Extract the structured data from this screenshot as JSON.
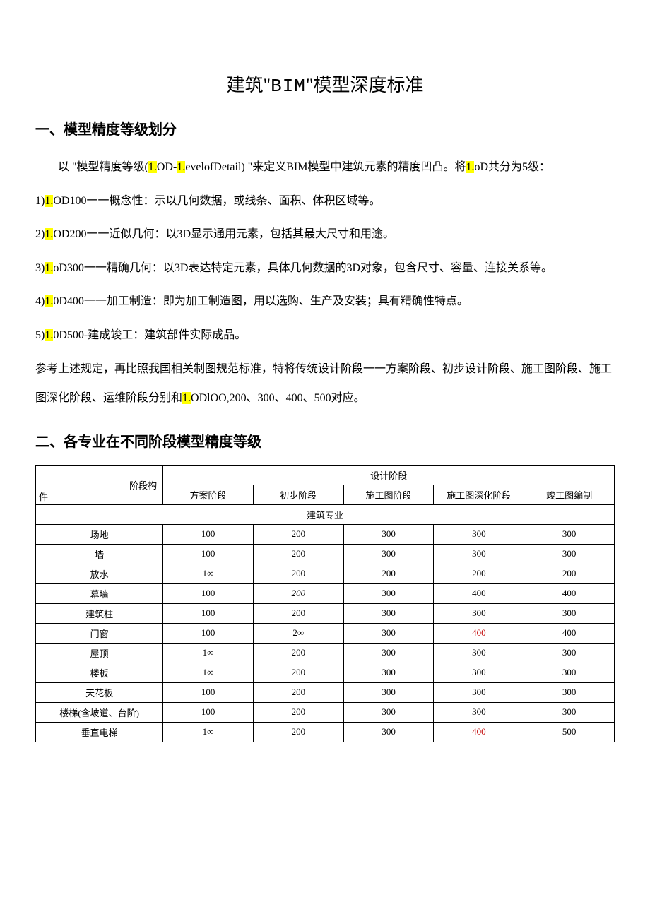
{
  "title_pre": "建筑\"",
  "title_mono": "BIM",
  "title_post": "\"模型深度标准",
  "heading1": "一、模型精度等级划分",
  "p1_pre": "以 \"模型精度等级(",
  "p1_hl1": "1.",
  "p1_mid1": "OD-",
  "p1_hl2": "1.",
  "p1_mid2": "evelofDetail) \"来定义BIM模型中建筑元素的精度凹凸。将",
  "p1_hl3": "1.",
  "p1_post": "oD共分为5级：",
  "p2_pre": "1)",
  "p2_hl": "1.",
  "p2_post": "OD100一一概念性：示以几何数据，或线条、面积、体积区域等。",
  "p3_pre": "2)",
  "p3_hl": "1.",
  "p3_post": "OD200一一近似几何：以3D显示通用元素，包括其最大尺寸和用途。",
  "p4_pre": "3)",
  "p4_hl": "1.",
  "p4_post": "oD300一一精确几何：以3D表达特定元素，具体几何数据的3D对象，包含尺寸、容量、连接关系等。",
  "p5_pre": "4)",
  "p5_hl": "1.",
  "p5_post": "0D400一一加工制造：即为加工制造图，用以选购、生产及安装；具有精确性特点。",
  "p6_pre": "5)",
  "p6_hl": "1.",
  "p6_post": "0D500-建成竣工：建筑部件实际成品。",
  "p7_pre": "参考上述规定，再比照我国相关制图规范标准，特将传统设计阶段一一方案阶段、初步设计阶段、施工图阶段、施工图深化阶段、运维阶段分别和",
  "p7_hl": "1.",
  "p7_post": "ODlOO,200、300、400、500对应。",
  "heading2": "二、各专业在不同阶段模型精度等级",
  "table": {
    "corner_top": "阶段构",
    "corner_bottom": "件",
    "design_phase_header": "设计阶段",
    "columns": [
      "方案阶段",
      "初步阶段",
      "施工图阶段",
      "施工图深化阶段",
      "竣工图编制"
    ],
    "section_label": "建筑专业",
    "rows": [
      {
        "label": "场地",
        "cells": [
          {
            "v": "100"
          },
          {
            "v": "200"
          },
          {
            "v": "300"
          },
          {
            "v": "300"
          },
          {
            "v": "300"
          }
        ]
      },
      {
        "label": "墙",
        "cells": [
          {
            "v": "100"
          },
          {
            "v": "200"
          },
          {
            "v": "300"
          },
          {
            "v": "300"
          },
          {
            "v": "300"
          }
        ]
      },
      {
        "label": "放水",
        "cells": [
          {
            "v": "1∞"
          },
          {
            "v": "200"
          },
          {
            "v": "200"
          },
          {
            "v": "200"
          },
          {
            "v": "200"
          }
        ]
      },
      {
        "label": "幕墙",
        "cells": [
          {
            "v": "100"
          },
          {
            "v": "200",
            "italic": true
          },
          {
            "v": "300"
          },
          {
            "v": "400"
          },
          {
            "v": "400"
          }
        ]
      },
      {
        "label": "建筑柱",
        "cells": [
          {
            "v": "100"
          },
          {
            "v": "200"
          },
          {
            "v": "300"
          },
          {
            "v": "300"
          },
          {
            "v": "300"
          }
        ]
      },
      {
        "label": "门窗",
        "cells": [
          {
            "v": "100"
          },
          {
            "v": "2∞"
          },
          {
            "v": "300"
          },
          {
            "v": "400",
            "red": true
          },
          {
            "v": "400"
          }
        ]
      },
      {
        "label": "屋顶",
        "cells": [
          {
            "v": "1∞"
          },
          {
            "v": "200"
          },
          {
            "v": "300"
          },
          {
            "v": "300"
          },
          {
            "v": "300"
          }
        ]
      },
      {
        "label": "楼板",
        "cells": [
          {
            "v": "1∞"
          },
          {
            "v": "200"
          },
          {
            "v": "300"
          },
          {
            "v": "300"
          },
          {
            "v": "300"
          }
        ]
      },
      {
        "label": "天花板",
        "cells": [
          {
            "v": "100"
          },
          {
            "v": "200"
          },
          {
            "v": "300"
          },
          {
            "v": "300"
          },
          {
            "v": "300"
          }
        ]
      },
      {
        "label": "楼梯(含坡道、台阶)",
        "cells": [
          {
            "v": "100"
          },
          {
            "v": "200"
          },
          {
            "v": "300"
          },
          {
            "v": "300"
          },
          {
            "v": "300"
          }
        ]
      },
      {
        "label": "垂直电梯",
        "cells": [
          {
            "v": "1∞"
          },
          {
            "v": "200"
          },
          {
            "v": "300"
          },
          {
            "v": "400",
            "red": true
          },
          {
            "v": "500"
          }
        ]
      }
    ]
  }
}
